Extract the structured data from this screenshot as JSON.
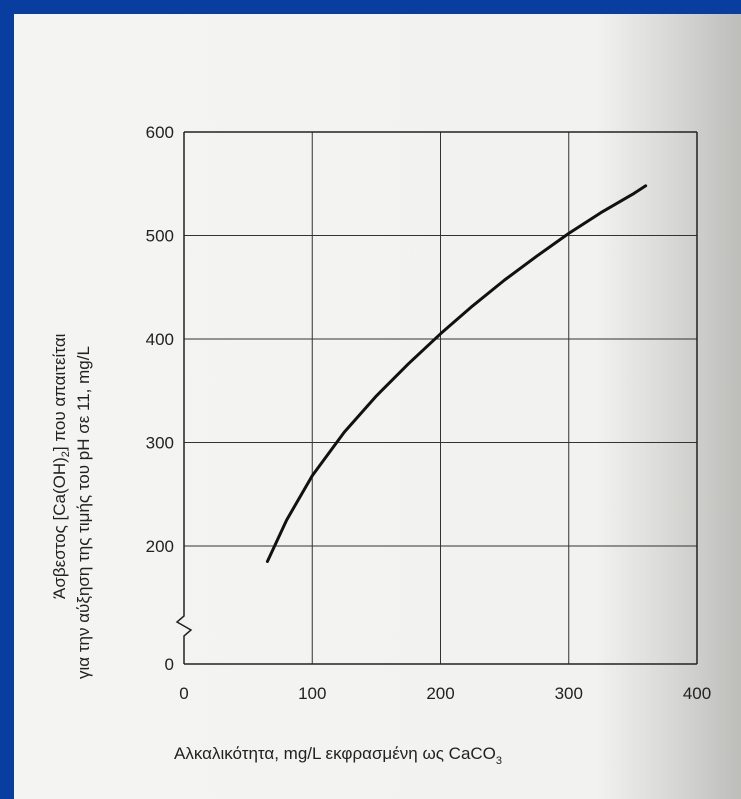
{
  "chart_data": {
    "type": "line",
    "xlabel": "Αλκαλικότητα, mg/L εκφρασμένη ως CaCO",
    "xlabel_subscript": "3",
    "ylabel_line1_prefix": "Άσβεστος [Ca(OH)",
    "ylabel_line1_subscript": "2",
    "ylabel_line1_suffix": "] που απαιτείται",
    "ylabel_line2": "για την αύξηση της τιμής του pH σε 11, mg/L",
    "x_ticks": [
      "0",
      "100",
      "200",
      "300",
      "400"
    ],
    "y_ticks": [
      "0",
      "200",
      "300",
      "400",
      "500",
      "600"
    ],
    "xlim": [
      0,
      400
    ],
    "ylim_broken": [
      0,
      600
    ],
    "y_axis_break": "between 0 and 200",
    "grid": true,
    "series": [
      {
        "x": [
          65,
          80,
          100,
          125,
          150,
          175,
          200,
          225,
          250,
          275,
          300,
          325,
          350,
          360
        ],
        "y": [
          185,
          225,
          268,
          310,
          345,
          376,
          405,
          432,
          457,
          480,
          502,
          522,
          540,
          548
        ]
      }
    ],
    "colors": {
      "line": "#111111",
      "grid": "#333333",
      "frame": "#222222",
      "background_outer": "#0a3da0"
    }
  }
}
